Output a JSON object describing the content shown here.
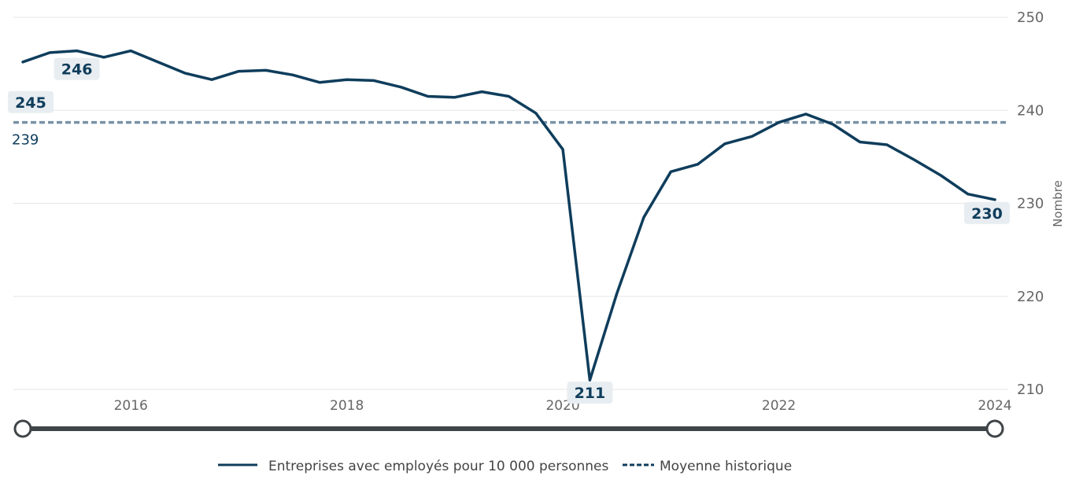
{
  "chart_data": {
    "type": "line",
    "ylabel": "Nombre",
    "ylim": [
      210,
      250
    ],
    "yticks": [
      210,
      220,
      230,
      240,
      250
    ],
    "xlim": [
      2015.0,
      2024.0
    ],
    "xticks": [
      {
        "value": 2016,
        "label": "2016"
      },
      {
        "value": 2018,
        "label": "2018"
      },
      {
        "value": 2020,
        "label": "2020"
      },
      {
        "value": 2022,
        "label": "2022"
      },
      {
        "value": 2024,
        "label": "2024"
      }
    ],
    "grid": true,
    "legend_position": "bottom",
    "series": [
      {
        "name": "Entreprises avec employés pour 10 000 personnes",
        "color": "#0f3d5c",
        "x": [
          2015.0,
          2015.25,
          2015.5,
          2015.75,
          2016.0,
          2016.25,
          2016.5,
          2016.75,
          2017.0,
          2017.25,
          2017.5,
          2017.75,
          2018.0,
          2018.25,
          2018.5,
          2018.75,
          2019.0,
          2019.25,
          2019.5,
          2019.75,
          2020.0,
          2020.25,
          2020.5,
          2020.75,
          2021.0,
          2021.25,
          2021.5,
          2021.75,
          2022.0,
          2022.25,
          2022.5,
          2022.75,
          2023.0,
          2023.25,
          2023.5,
          2023.75,
          2024.0
        ],
        "values": [
          245.2,
          246.2,
          246.4,
          245.7,
          246.4,
          245.2,
          244.0,
          243.3,
          244.2,
          244.3,
          243.8,
          243.0,
          243.3,
          243.2,
          242.5,
          241.5,
          241.4,
          242.0,
          241.5,
          239.7,
          235.8,
          211.0,
          220.3,
          228.5,
          233.4,
          234.2,
          236.4,
          237.2,
          238.7,
          239.6,
          238.5,
          236.6,
          236.3,
          234.7,
          233.0,
          231.0,
          230.4
        ]
      },
      {
        "name": "Moyenne historique",
        "color": "#7a92a6",
        "style": "dashed",
        "value": 238.7
      }
    ],
    "average_label": "239",
    "badges": [
      {
        "x": 2015.0,
        "y": 245.2,
        "text": "245"
      },
      {
        "x": 2015.5,
        "y": 246.4,
        "text": "246"
      },
      {
        "x": 2020.25,
        "y": 211.0,
        "text": "211"
      },
      {
        "x": 2024.0,
        "y": 230.4,
        "text": "230"
      }
    ]
  },
  "legend": {
    "series_label": "Entreprises avec employés pour 10 000 personnes",
    "average_label": "Moyenne historique"
  }
}
